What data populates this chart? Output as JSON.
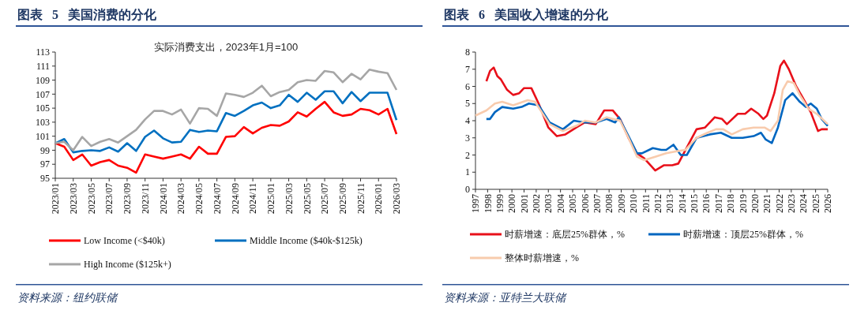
{
  "chart_data": [
    {
      "type": "line",
      "title": "图表 5 美国消费的分化",
      "subtitle": "实际消费支出，2023年1月=100",
      "annotations": [
        "资料来源：纽约联储"
      ],
      "categories": [
        "2023/01",
        null,
        "2023/03",
        null,
        "2023/05",
        null,
        "2023/07",
        null,
        "2023/09",
        null,
        "2023/11",
        null,
        "2024/01",
        null,
        "2024/03",
        null,
        "2024/05",
        null,
        "2024/07",
        null,
        "2024/09",
        null,
        "2024/11",
        null,
        "2025/01",
        null,
        "2025/03",
        null,
        "2025/05",
        null,
        "2025/07",
        null,
        "2025/09",
        null,
        "2025/11",
        null,
        "2026/01",
        null,
        "2026/03"
      ],
      "ylim": [
        95,
        113
      ],
      "yticks": [
        95,
        97,
        99,
        101,
        103,
        105,
        107,
        109,
        111,
        113
      ],
      "grid": false,
      "legend": "bottom",
      "series": [
        {
          "name": "Low Income (<$40k)",
          "color": "#ff0000",
          "values": [
            100,
            99.5,
            97.6,
            98.4,
            96.8,
            97.3,
            97.6,
            96.8,
            96.5,
            95.8,
            98.4,
            98.1,
            97.8,
            98.1,
            98.4,
            97.8,
            99.5,
            98.5,
            98.5,
            100.9,
            101.0,
            102.3,
            101.4,
            102.2,
            102.6,
            102.5,
            103.1,
            104.4,
            103.8,
            104.9,
            105.9,
            104.4,
            103.9,
            104.1,
            104.9,
            104.7,
            104.1,
            104.9,
            101.3
          ]
        },
        {
          "name": "Middle Income ($40k-$125k)",
          "color": "#0070c0",
          "values": [
            100,
            100.6,
            98.7,
            98.9,
            99.0,
            98.9,
            99.4,
            98.8,
            100.0,
            98.9,
            100.9,
            101.8,
            100.7,
            100.1,
            100.2,
            101.9,
            101.6,
            101.8,
            101.7,
            104.3,
            103.9,
            104.6,
            105.4,
            105.8,
            105.0,
            105.4,
            106.9,
            105.9,
            107.2,
            106.2,
            107.4,
            107.4,
            105.7,
            107.3,
            106.0,
            107.2,
            107.2,
            107.2,
            103.3
          ]
        },
        {
          "name": "High Income ($125k+)",
          "color": "#a6a6a6",
          "values": [
            100,
            100.2,
            99.0,
            100.9,
            99.6,
            100.2,
            100.6,
            100.1,
            101.0,
            101.9,
            103.4,
            104.6,
            104.6,
            104.1,
            104.8,
            102.8,
            105.0,
            104.9,
            103.9,
            107.1,
            106.9,
            106.6,
            107.2,
            108.2,
            106.7,
            107.3,
            107.6,
            108.7,
            109.0,
            108.9,
            110.3,
            110.1,
            108.7,
            109.9,
            109.1,
            110.5,
            110.2,
            110.0,
            107.6
          ]
        }
      ]
    },
    {
      "type": "line",
      "title": "图表 6 美国收入增速的分化",
      "annotations": [
        "资料来源：亚特兰大联储"
      ],
      "xlim": [
        1997,
        2026
      ],
      "xticks": [
        1997,
        1998,
        1999,
        2000,
        2001,
        2002,
        2003,
        2004,
        2005,
        2006,
        2007,
        2008,
        2009,
        2010,
        2011,
        2012,
        2013,
        2014,
        2015,
        2016,
        2017,
        2018,
        2019,
        2020,
        2021,
        2022,
        2023,
        2024,
        2025,
        2026
      ],
      "ylim": [
        0,
        8
      ],
      "yticks": [
        0,
        1,
        2,
        3,
        4,
        5,
        6,
        7,
        8
      ],
      "grid": false,
      "legend": "bottom",
      "series": [
        {
          "name": "时薪增速：底层25%群体，%",
          "color": "#e8101a",
          "x": [
            1997.9,
            1998.2,
            1998.5,
            1998.8,
            1999.1,
            1999.6,
            2000.1,
            2000.6,
            2001.0,
            2001.6,
            2002.2,
            2003.0,
            2003.7,
            2004.4,
            2005.3,
            2006.0,
            2006.9,
            2007.6,
            2008.3,
            2008.9,
            2009.6,
            2010.3,
            2010.9,
            2011.8,
            2012.5,
            2013.2,
            2013.7,
            2014.3,
            2015.2,
            2015.9,
            2016.7,
            2017.3,
            2017.7,
            2018.6,
            2019.2,
            2019.7,
            2020.3,
            2020.7,
            2021.0,
            2021.6,
            2022.1,
            2022.4,
            2022.8,
            2023.4,
            2023.9,
            2024.6,
            2025.2,
            2025.5,
            2026.0
          ],
          "values": [
            6.3,
            6.9,
            7.1,
            6.6,
            6.4,
            5.8,
            5.5,
            5.6,
            5.9,
            5.9,
            5.0,
            3.6,
            3.1,
            3.2,
            3.6,
            3.9,
            3.8,
            4.6,
            4.6,
            4.1,
            3.0,
            2.1,
            1.8,
            1.1,
            1.4,
            1.4,
            1.5,
            2.3,
            3.5,
            3.6,
            4.2,
            4.1,
            3.8,
            4.4,
            4.4,
            4.7,
            4.4,
            4.1,
            4.3,
            5.6,
            7.2,
            7.5,
            7.0,
            6.0,
            5.4,
            4.5,
            3.4,
            3.5,
            3.5
          ]
        },
        {
          "name": "时薪增速：顶层25%群体，%",
          "color": "#0066c0",
          "x": [
            1997.9,
            1998.2,
            1998.6,
            1999.2,
            2000.1,
            2000.8,
            2001.4,
            2002.2,
            2003.1,
            2004.2,
            2005.1,
            2006.0,
            2006.9,
            2007.8,
            2008.5,
            2008.8,
            2009.6,
            2010.3,
            2010.7,
            2011.6,
            2012.3,
            2012.7,
            2013.3,
            2013.9,
            2014.4,
            2015.2,
            2016.3,
            2017.2,
            2018.1,
            2019.0,
            2019.9,
            2020.5,
            2020.9,
            2021.4,
            2021.9,
            2022.5,
            2023.1,
            2023.7,
            2024.2,
            2024.6,
            2025.1,
            2025.5,
            2026.0
          ],
          "values": [
            4.1,
            4.1,
            4.5,
            4.8,
            4.7,
            4.8,
            5.0,
            4.9,
            3.9,
            3.5,
            4.0,
            3.9,
            3.9,
            4.1,
            3.9,
            4.2,
            3.1,
            2.1,
            2.1,
            2.4,
            2.3,
            2.3,
            2.6,
            2.0,
            2.0,
            3.0,
            3.2,
            3.3,
            3.0,
            3.0,
            3.1,
            3.3,
            2.9,
            2.7,
            3.6,
            5.2,
            5.6,
            5.1,
            4.8,
            5.0,
            4.7,
            4.1,
            3.7
          ]
        },
        {
          "name": "整体时薪增速，%",
          "color": "#f8cbad",
          "x": [
            1997.0,
            1997.9,
            1998.6,
            1999.2,
            2000.1,
            2001.3,
            2001.9,
            2003.1,
            2004.2,
            2005.3,
            2006.0,
            2006.9,
            2007.8,
            2008.9,
            2009.6,
            2010.3,
            2010.9,
            2011.8,
            2012.7,
            2013.4,
            2014.3,
            2015.2,
            2016.1,
            2016.8,
            2017.4,
            2018.1,
            2019.0,
            2019.9,
            2020.8,
            2021.3,
            2021.9,
            2022.3,
            2022.7,
            2023.2,
            2023.7,
            2024.4,
            2025.1,
            2026.0
          ],
          "values": [
            4.3,
            4.6,
            5.0,
            5.1,
            4.9,
            5.2,
            5.1,
            3.8,
            3.4,
            3.7,
            4.0,
            3.9,
            4.2,
            4.0,
            3.0,
            1.9,
            1.7,
            1.9,
            2.1,
            2.2,
            2.3,
            3.0,
            3.3,
            3.5,
            3.5,
            3.2,
            3.5,
            3.6,
            3.6,
            3.4,
            4.0,
            5.8,
            6.3,
            6.2,
            5.5,
            4.7,
            4.4,
            3.8
          ]
        }
      ]
    }
  ]
}
